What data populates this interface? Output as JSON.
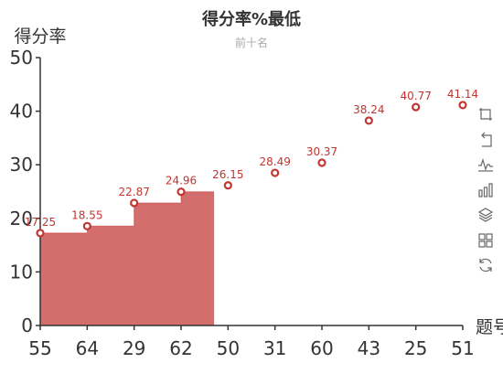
{
  "chart_data": {
    "type": "line",
    "step": true,
    "title": "得分率%最低",
    "subtitle": "前十名",
    "ylabel": "得分率",
    "xlabel": "题号",
    "categories": [
      "55",
      "64",
      "29",
      "62",
      "50",
      "31",
      "60",
      "43",
      "25",
      "51"
    ],
    "series": [
      {
        "values": [
          17.25,
          18.55,
          22.87,
          24.96,
          26.15,
          28.49,
          30.37,
          38.24,
          40.77,
          41.14
        ]
      }
    ],
    "value_labels": [
      "17.25",
      "18.55",
      "22.87",
      "24.96",
      "26.15",
      "28.49",
      "30.37",
      "38.24",
      "40.77",
      "41.14"
    ],
    "shaded_points": 4,
    "ylim": [
      0,
      50
    ],
    "yticks": [
      0,
      10,
      20,
      30,
      40,
      50
    ],
    "colors": {
      "series": "#c23531",
      "area": "#d36e6d",
      "axis": "#333333"
    }
  },
  "toolbox": {
    "icons": [
      "zoom-icon",
      "zoom-reset-icon",
      "line-type-icon",
      "bar-type-icon",
      "stack-icon",
      "tiled-icon",
      "restore-icon"
    ]
  }
}
